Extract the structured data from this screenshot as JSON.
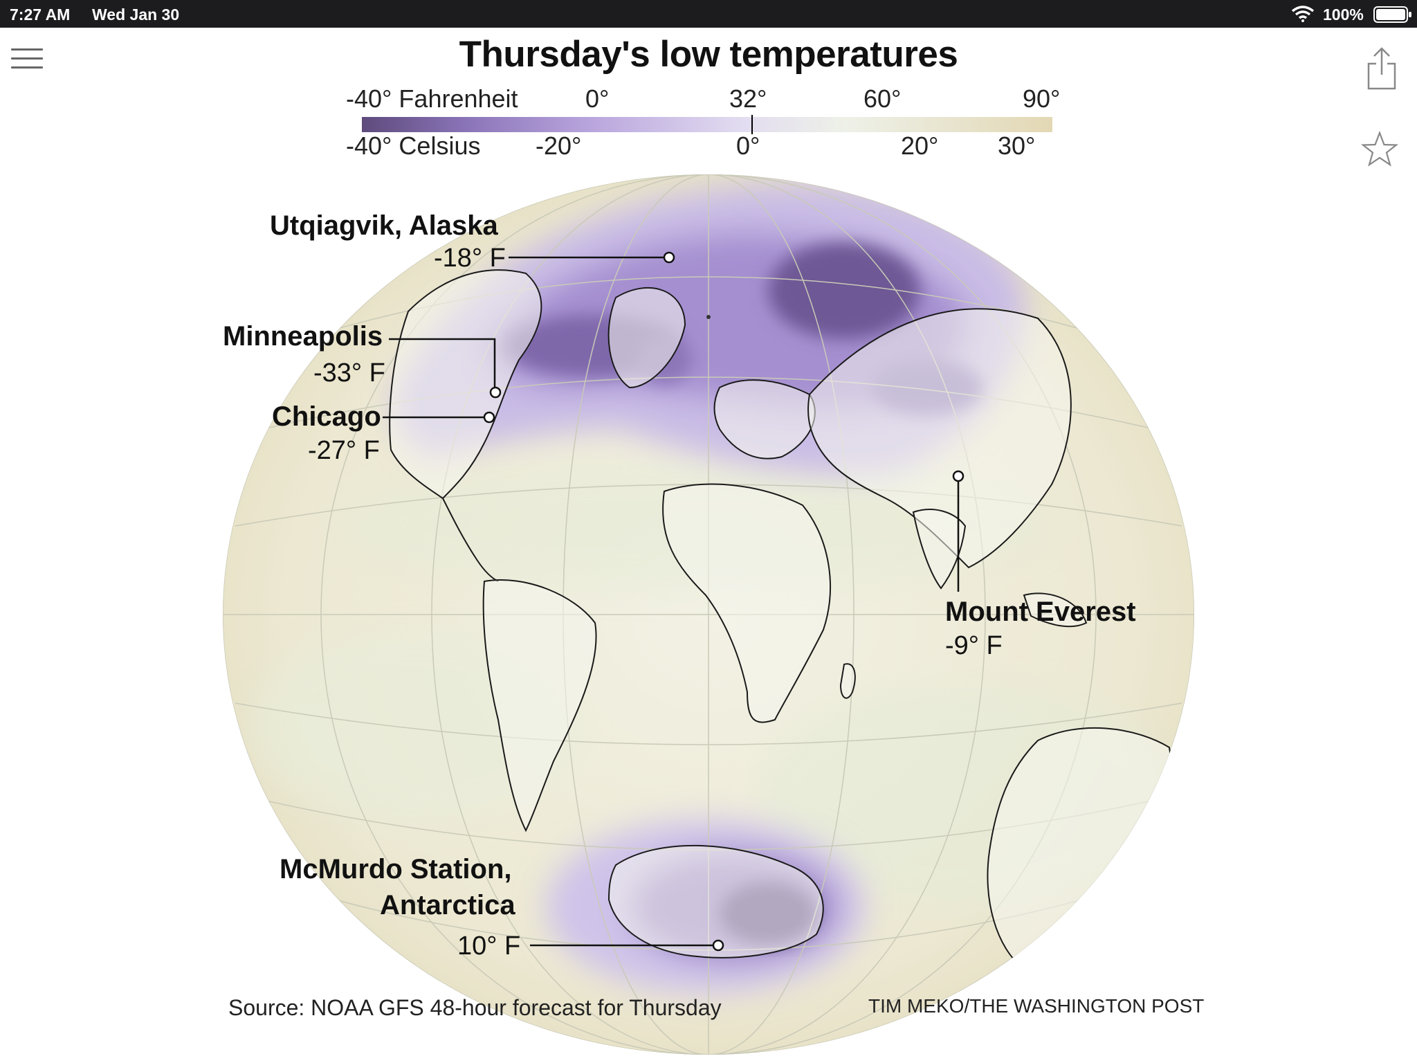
{
  "status_bar": {
    "time": "7:27 AM",
    "date": "Wed Jan 30",
    "battery": "100%",
    "icons": [
      "wifi-icon",
      "battery-icon"
    ]
  },
  "toolbar": {
    "icons": [
      "hamburger-menu-icon",
      "share-icon",
      "star-icon"
    ]
  },
  "title": "Thursday's low temperatures",
  "legend": {
    "fahrenheit": [
      "-40° Fahrenheit",
      "0°",
      "32°",
      "60°",
      "90°"
    ],
    "celsius": [
      "-40° Celsius",
      "-20°",
      "0°",
      "20°",
      "30°"
    ],
    "colors": [
      "#5e4b7c",
      "#b9a5dd",
      "#eef1e8",
      "#e3d8b4"
    ]
  },
  "callouts": {
    "utqiagvik": {
      "name": "Utqiagvik, Alaska",
      "temp": "-18° F"
    },
    "minneapolis": {
      "name": "Minneapolis",
      "temp": "-33° F"
    },
    "chicago": {
      "name": "Chicago",
      "temp": "-27° F"
    },
    "everest": {
      "name": "Mount Everest",
      "temp": "-9° F"
    },
    "mcmurdo": {
      "name_line1": "McMurdo Station,",
      "name_line2": "Antarctica",
      "temp": "10° F"
    }
  },
  "footer": {
    "source": "Source: NOAA GFS 48-hour forecast for Thursday",
    "credit": "TIM MEKO/THE WASHINGTON POST"
  }
}
